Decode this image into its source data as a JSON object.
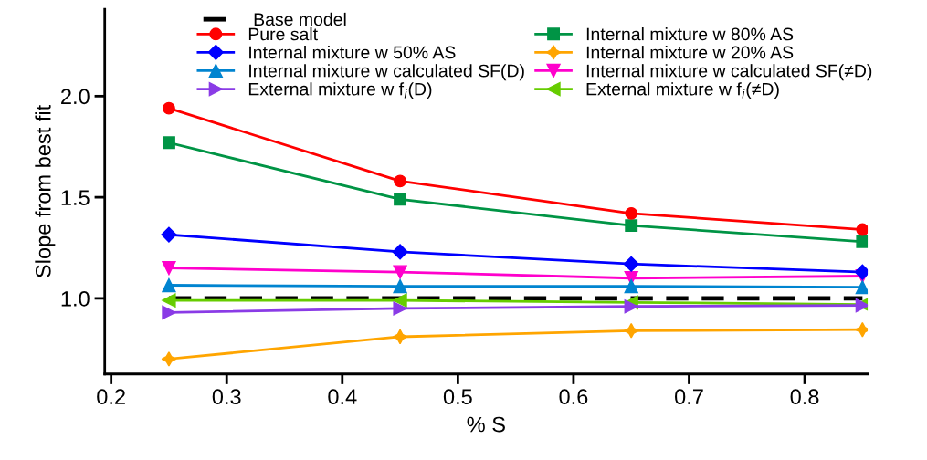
{
  "chart_data": {
    "type": "line",
    "xlabel": "% S",
    "ylabel": "Slope from best fit",
    "x": [
      0.25,
      0.45,
      0.65,
      0.85
    ],
    "xlim": [
      0.1945,
      0.8545
    ],
    "xticks": [
      0.2,
      0.3,
      0.4,
      0.5,
      0.6,
      0.7,
      0.8
    ],
    "ylim": [
      0.626,
      2.43
    ],
    "yticks": [
      {
        "value": 1.0,
        "label": "1.0"
      },
      {
        "value": 1.5,
        "label": "1.5"
      },
      {
        "value": 2.0,
        "label": "2.0"
      }
    ],
    "grid": false,
    "legend": "top",
    "series": [
      {
        "name": "Base model",
        "color": "#000000",
        "values": [
          1.0,
          1.0,
          1.0,
          1.0
        ],
        "marker": "none",
        "line_style": "dashed"
      },
      {
        "name": "Pure salt",
        "color": "#ff0000",
        "values": [
          1.94,
          1.58,
          1.42,
          1.34
        ],
        "marker": "circle"
      },
      {
        "name": "Internal mixture w 80% AS",
        "color": "#009445",
        "values": [
          1.77,
          1.49,
          1.36,
          1.28
        ],
        "marker": "square"
      },
      {
        "name": "Internal mixture w 50% AS",
        "color": "#0000ff",
        "values": [
          1.315,
          1.23,
          1.17,
          1.13
        ],
        "marker": "diamond"
      },
      {
        "name": "Internal mixture w 20% AS",
        "color": "#ffa500",
        "values": [
          0.7,
          0.81,
          0.84,
          0.845
        ],
        "marker": "star"
      },
      {
        "name": "Internal mixture w calculated SF(D)",
        "color": "#0084d0",
        "values": [
          1.065,
          1.06,
          1.06,
          1.055
        ],
        "marker": "triangle"
      },
      {
        "name": "Internal mixture w calculated SF(≠D)",
        "color": "#ff00cc",
        "values": [
          1.15,
          1.13,
          1.1,
          1.11
        ],
        "marker": "triangle_down"
      },
      {
        "name": "External mixture w f$_{i}$(D)",
        "color": "#8a3be6",
        "values": [
          0.93,
          0.95,
          0.96,
          0.965
        ],
        "marker": "triangle_right"
      },
      {
        "name": "External mixture w f$_{i}$(≠D)",
        "color": "#66cc00",
        "values": [
          0.99,
          0.99,
          0.98,
          0.97
        ],
        "marker": "triangle_left"
      }
    ]
  }
}
